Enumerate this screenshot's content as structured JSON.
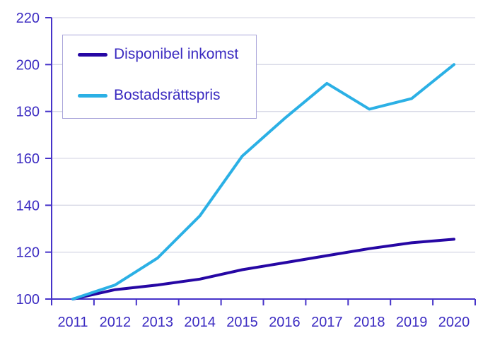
{
  "chart_data": {
    "type": "line",
    "title": "",
    "xlabel": "",
    "ylabel": "",
    "x": [
      2011,
      2012,
      2013,
      2014,
      2015,
      2016,
      2017,
      2018,
      2019,
      2020
    ],
    "series": [
      {
        "name": "Disponibel inkomst",
        "color": "#2607a4",
        "values": [
          100,
          104,
          106,
          108.5,
          112.5,
          115.5,
          118.5,
          121.5,
          124,
          125.5
        ]
      },
      {
        "name": "Bostadsrättspris",
        "color": "#2bb0e5",
        "values": [
          100,
          106,
          117.5,
          135.5,
          161,
          177,
          192,
          181,
          185.5,
          200
        ]
      }
    ],
    "ylim": [
      100,
      220
    ],
    "yticks": [
      100,
      120,
      140,
      160,
      180,
      200,
      220
    ],
    "grid": "horizontal",
    "legend_position": "top-left"
  },
  "colors": {
    "background": "#ffffff",
    "axis": "#4633c9",
    "tick_label": "#3c2cc2",
    "grid": "#d9dae7",
    "legend_border": "#a9a4da",
    "legend_text": "#3a2ac0"
  }
}
